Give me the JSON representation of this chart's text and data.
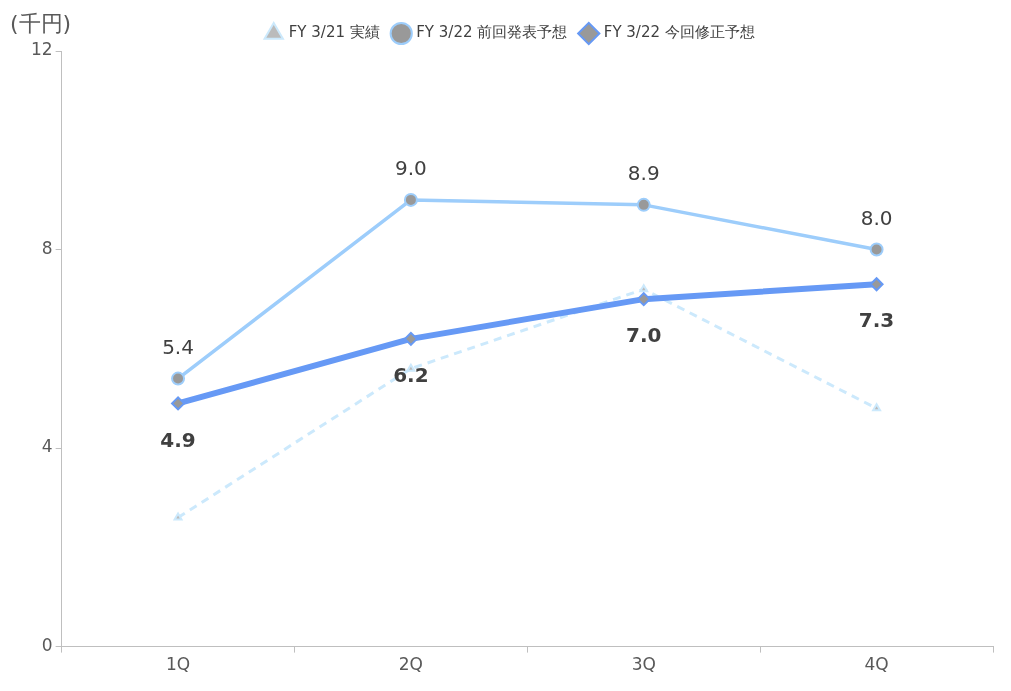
{
  "chart_data": {
    "type": "line",
    "ylabel": "(千円)",
    "categories": [
      "1Q",
      "2Q",
      "3Q",
      "4Q"
    ],
    "series": [
      {
        "name": "FY 3/21 実績",
        "color": "#cce9fc",
        "values": [
          2.6,
          5.6,
          7.2,
          4.8
        ],
        "marker": "triangle",
        "line_style": "dashed"
      },
      {
        "name": "FY 3/22 前回発表予想",
        "color": "#9dcdfb",
        "values": [
          5.4,
          9.0,
          8.9,
          8.0
        ],
        "marker": "circle",
        "line_style": "solid",
        "value_labels": [
          "5.4",
          "9.0",
          "8.9",
          "8.0"
        ]
      },
      {
        "name": "FY 3/22 今回修正予想",
        "color": "#6699f5",
        "values": [
          4.9,
          6.2,
          7.0,
          7.3
        ],
        "marker": "diamond",
        "line_style": "solid",
        "value_labels": [
          "4.9",
          "6.2",
          "7.0",
          "7.3"
        ]
      }
    ],
    "ylim": [
      0,
      12
    ],
    "yticks": [
      0,
      4,
      8,
      12
    ],
    "grid": false,
    "legend": "top"
  }
}
